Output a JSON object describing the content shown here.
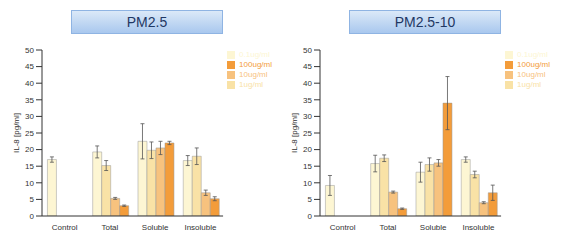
{
  "chart_data": [
    {
      "type": "bar",
      "title": "PM2.5",
      "y_label": "IL-8 [pg/ml]",
      "categories": [
        "Control",
        "Total",
        "Soluble",
        "Insoluble"
      ],
      "series": [
        {
          "name": "0.1ug/ml",
          "color": "#fdf6d3",
          "values": [
            17,
            19.3,
            22.5,
            16.7
          ],
          "errors": [
            0.8,
            1.8,
            5.3,
            1.5
          ]
        },
        {
          "name": "1ug/ml",
          "color": "#f9e2a6",
          "values": [
            null,
            15.2,
            19.8,
            18
          ],
          "errors": [
            null,
            1.5,
            2.5,
            2.5
          ]
        },
        {
          "name": "10ug/ml",
          "color": "#f7c27e",
          "values": [
            null,
            5.3,
            20.5,
            7
          ],
          "errors": [
            null,
            0.3,
            2,
            0.8
          ]
        },
        {
          "name": "100ug/ml",
          "color": "#f39c3a",
          "values": [
            null,
            3.1,
            22,
            5.2
          ],
          "errors": [
            null,
            0.2,
            0.5,
            0.6
          ]
        }
      ],
      "ylim": [
        0,
        50
      ],
      "yticks": [
        0,
        5,
        10,
        15,
        20,
        25,
        30,
        35,
        40,
        45,
        50
      ],
      "grid": false,
      "legend": "upper right"
    },
    {
      "type": "bar",
      "title": "PM2.5-10",
      "y_label": "IL-8 [pg/ml]",
      "categories": [
        "Control",
        "Total",
        "Soluble",
        "Insoluble"
      ],
      "series": [
        {
          "name": "0.1ug/ml",
          "color": "#fdf6d3",
          "values": [
            9.2,
            15.8,
            13.2,
            17
          ],
          "errors": [
            3,
            2.5,
            3,
            0.8
          ]
        },
        {
          "name": "1ug/ml",
          "color": "#f9e2a6",
          "values": [
            null,
            17.4,
            15.5,
            12.5
          ],
          "errors": [
            null,
            1,
            2,
            1
          ]
        },
        {
          "name": "10ug/ml",
          "color": "#f7c27e",
          "values": [
            null,
            7.2,
            16,
            4
          ],
          "errors": [
            null,
            0.3,
            1,
            0.3
          ]
        },
        {
          "name": "100ug/ml",
          "color": "#f39c3a",
          "values": [
            null,
            2.2,
            34,
            7
          ],
          "errors": [
            null,
            0.2,
            8,
            2.3
          ]
        }
      ],
      "ylim": [
        0,
        50
      ],
      "yticks": [
        0,
        5,
        10,
        15,
        20,
        25,
        30,
        35,
        40,
        45,
        50
      ],
      "grid": false,
      "legend": "upper right"
    }
  ]
}
